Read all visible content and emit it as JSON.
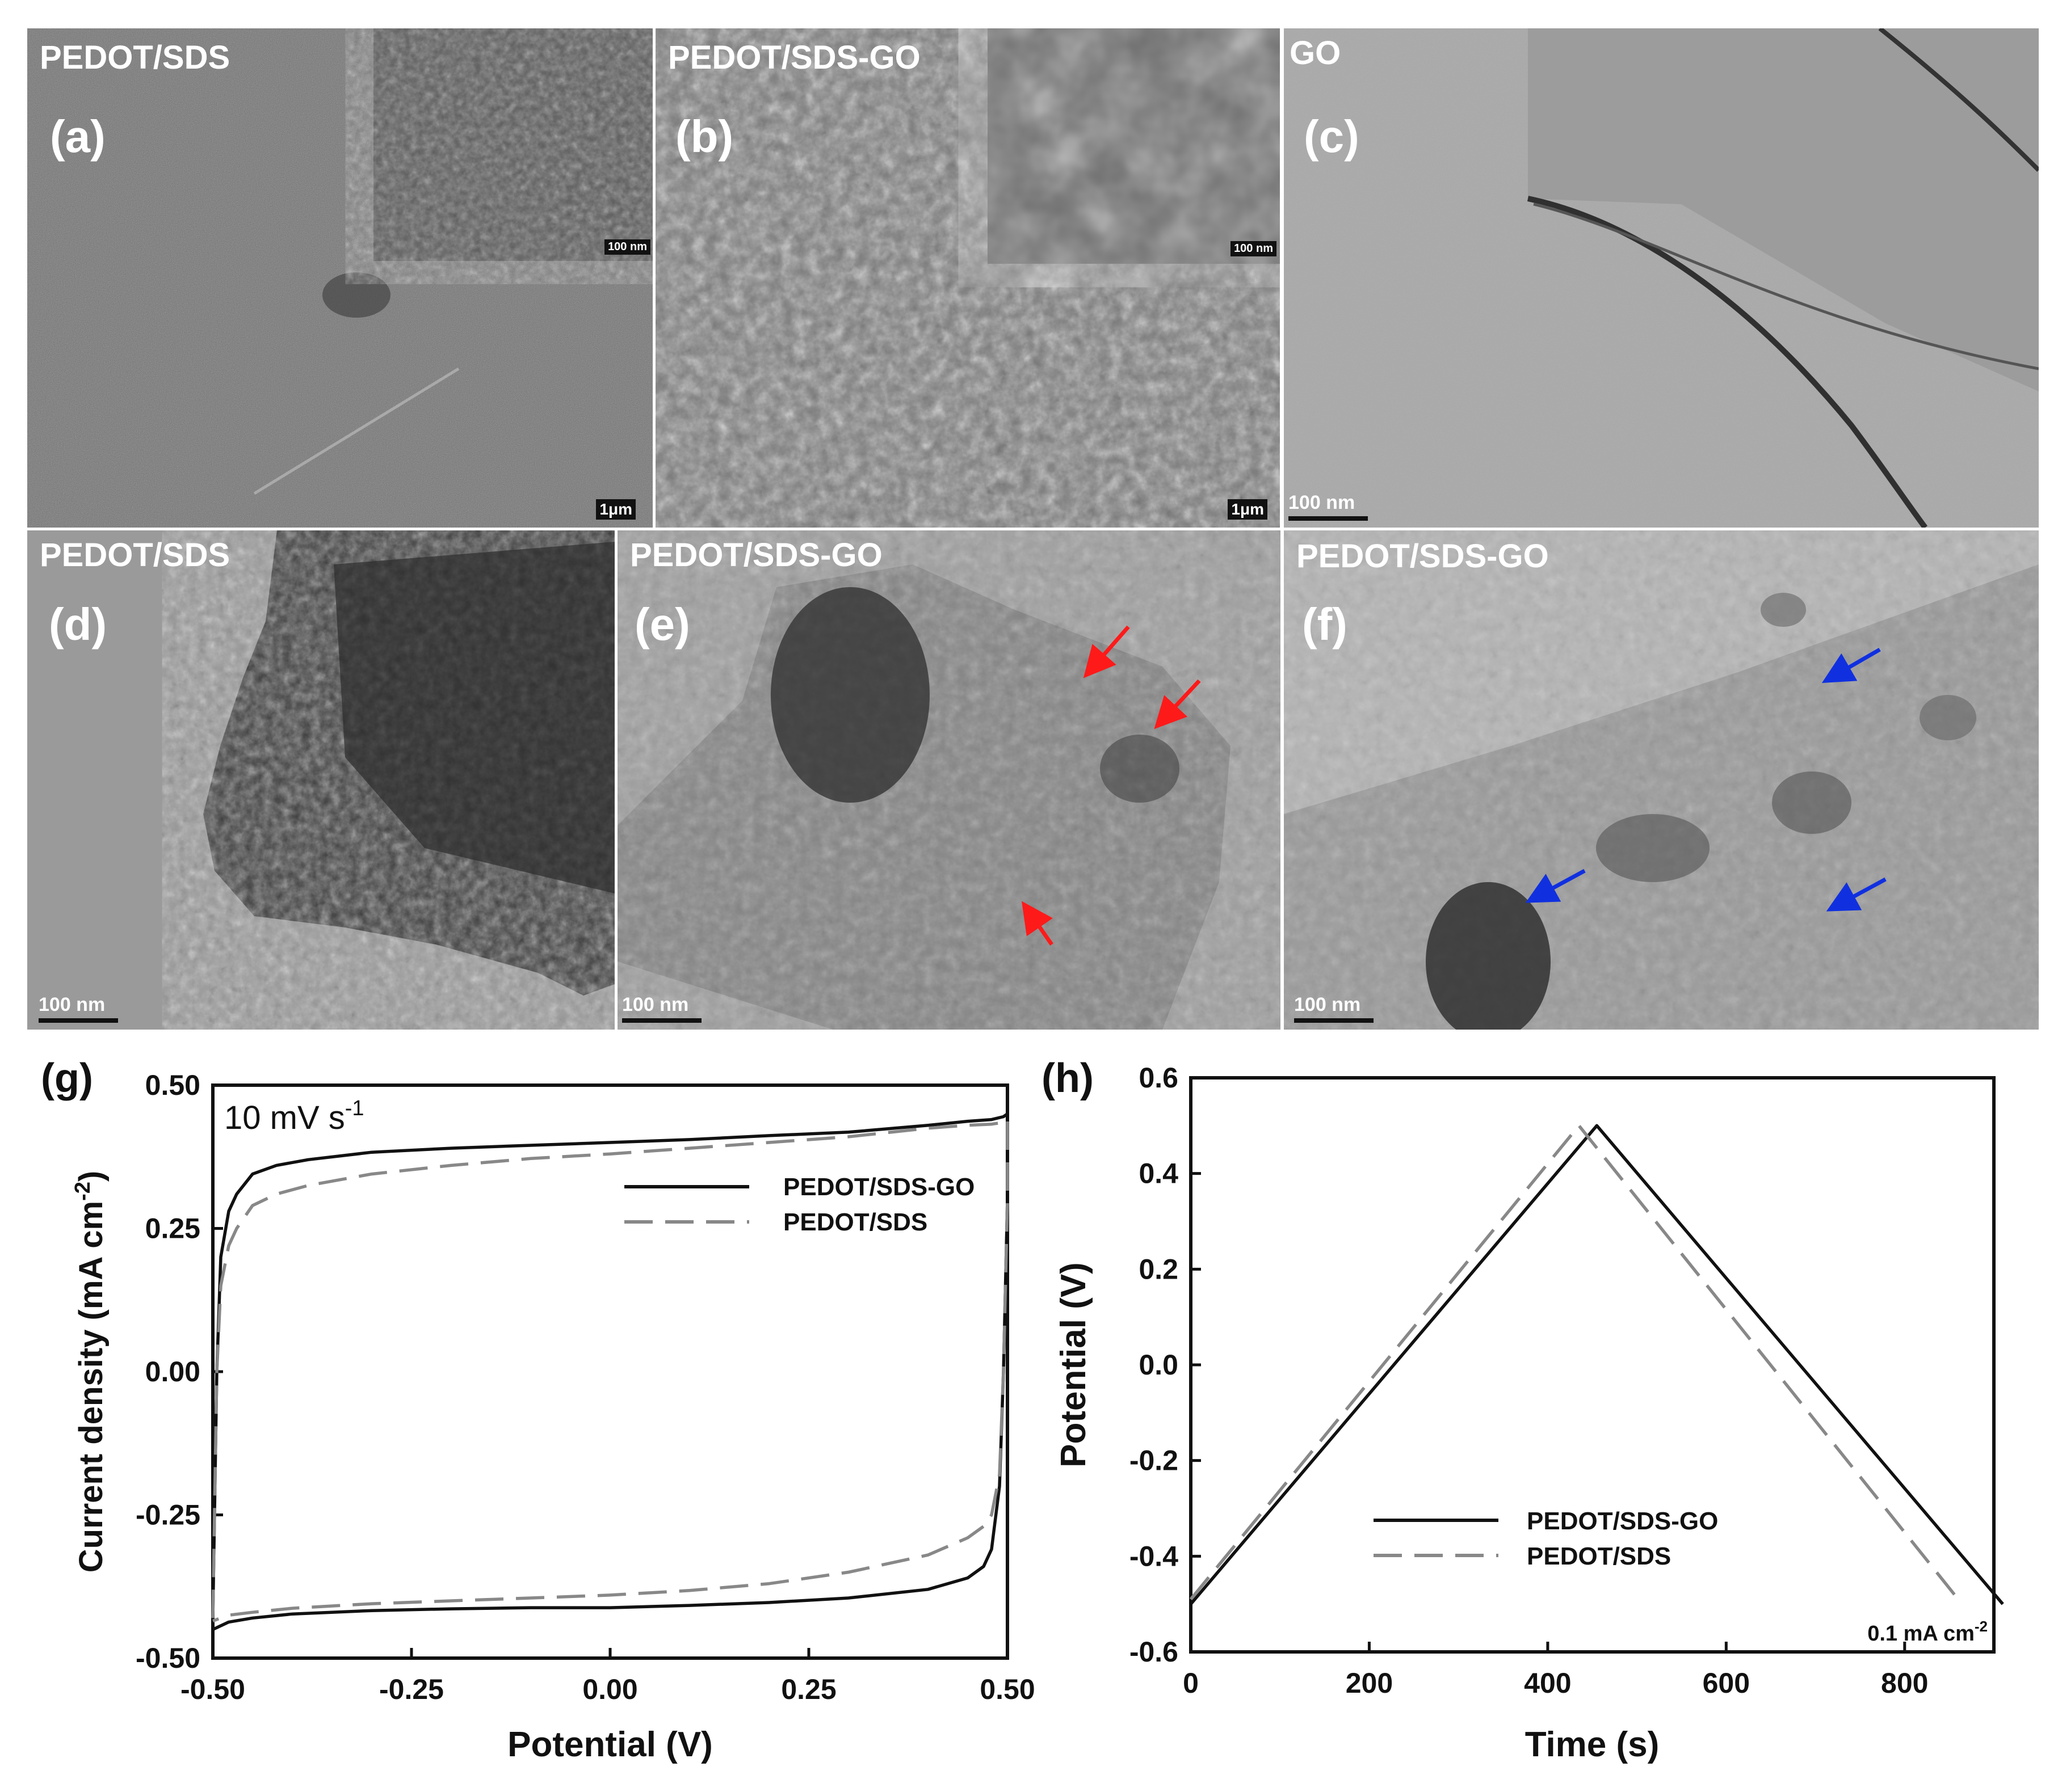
{
  "panels": {
    "a": {
      "title": "PEDOT/SDS",
      "label": "(a)",
      "scale_main": "1μm",
      "scale_inset": "100 nm"
    },
    "b": {
      "title": "PEDOT/SDS-GO",
      "label": "(b)",
      "scale_main": "1μm",
      "scale_inset": "100 nm"
    },
    "c": {
      "title": "GO",
      "label": "(c)",
      "scale": "100 nm"
    },
    "d": {
      "title": "PEDOT/SDS",
      "label": "(d)",
      "scale": "100 nm"
    },
    "e": {
      "title": "PEDOT/SDS-GO",
      "label": "(e)",
      "scale": "100 nm"
    },
    "f": {
      "title": "PEDOT/SDS-GO",
      "label": "(f)",
      "scale": "100 nm"
    }
  },
  "colors": {
    "red_arrow": "#ff1a1a",
    "blue_arrow": "#1030e0",
    "series_solid": "#111111",
    "series_dashed": "#888888"
  },
  "chart_data": [
    {
      "panel_label": "(g)",
      "type": "line",
      "annotation": "10 mV s",
      "annotation_sup": "-1",
      "xlabel": "Potential (V)",
      "ylabel": "Current density (mA cm",
      "ylabel_sup": "-2",
      "ylabel_end": ")",
      "xlim": [
        -0.5,
        0.5
      ],
      "ylim": [
        -0.5,
        0.5
      ],
      "xticks": [
        "-0.50",
        "-0.25",
        "0.00",
        "0.25",
        "0.50"
      ],
      "yticks": [
        "-0.50",
        "-0.25",
        "0.00",
        "0.25",
        "0.50"
      ],
      "legend": "top-right",
      "series": [
        {
          "name": "PEDOT/SDS-GO",
          "style": "solid",
          "x": [
            -0.5,
            -0.495,
            -0.49,
            -0.48,
            -0.47,
            -0.45,
            -0.42,
            -0.38,
            -0.3,
            -0.2,
            -0.1,
            0.0,
            0.1,
            0.2,
            0.3,
            0.4,
            0.45,
            0.48,
            0.495,
            0.5,
            0.5,
            0.495,
            0.49,
            0.48,
            0.47,
            0.45,
            0.4,
            0.3,
            0.2,
            0.1,
            0.0,
            -0.1,
            -0.2,
            -0.3,
            -0.4,
            -0.45,
            -0.48,
            -0.5
          ],
          "y": [
            -0.43,
            0.0,
            0.2,
            0.28,
            0.31,
            0.345,
            0.36,
            0.37,
            0.383,
            0.39,
            0.395,
            0.4,
            0.405,
            0.412,
            0.418,
            0.43,
            0.437,
            0.44,
            0.445,
            0.45,
            0.3,
            0.0,
            -0.2,
            -0.31,
            -0.34,
            -0.36,
            -0.38,
            -0.395,
            -0.403,
            -0.408,
            -0.412,
            -0.412,
            -0.414,
            -0.417,
            -0.423,
            -0.43,
            -0.437,
            -0.45
          ]
        },
        {
          "name": "PEDOT/SDS",
          "style": "dashed",
          "x": [
            -0.5,
            -0.495,
            -0.49,
            -0.48,
            -0.47,
            -0.45,
            -0.42,
            -0.38,
            -0.3,
            -0.2,
            -0.1,
            0.0,
            0.1,
            0.2,
            0.3,
            0.4,
            0.45,
            0.48,
            0.495,
            0.5,
            0.5,
            0.495,
            0.49,
            0.48,
            0.47,
            0.45,
            0.4,
            0.3,
            0.2,
            0.1,
            0.0,
            -0.1,
            -0.2,
            -0.3,
            -0.4,
            -0.45,
            -0.48,
            -0.5
          ],
          "y": [
            -0.43,
            0.0,
            0.15,
            0.22,
            0.25,
            0.29,
            0.31,
            0.325,
            0.345,
            0.36,
            0.372,
            0.38,
            0.39,
            0.4,
            0.41,
            0.425,
            0.43,
            0.432,
            0.435,
            0.44,
            0.3,
            0.0,
            -0.18,
            -0.25,
            -0.27,
            -0.29,
            -0.32,
            -0.35,
            -0.37,
            -0.382,
            -0.39,
            -0.395,
            -0.4,
            -0.405,
            -0.413,
            -0.42,
            -0.425,
            -0.435
          ]
        }
      ]
    },
    {
      "panel_label": "(h)",
      "type": "line",
      "xlabel": "Time (s)",
      "ylabel": "Potential (V)",
      "xlim": [
        0,
        900
      ],
      "ylim": [
        -0.6,
        0.6
      ],
      "xticks": [
        "0",
        "200",
        "400",
        "600",
        "800"
      ],
      "yticks": [
        "-0.6",
        "-0.4",
        "-0.2",
        "0.0",
        "0.2",
        "0.4",
        "0.6"
      ],
      "annotation": "0.1 mA cm",
      "annotation_sup": "-2",
      "legend": "bottom-center",
      "series": [
        {
          "name": "PEDOT/SDS-GO",
          "style": "solid",
          "x": [
            0,
            455,
            910
          ],
          "y": [
            -0.5,
            0.5,
            -0.5
          ]
        },
        {
          "name": "PEDOT/SDS",
          "style": "dashed",
          "x": [
            0,
            435,
            860
          ],
          "y": [
            -0.49,
            0.5,
            -0.49
          ]
        }
      ]
    }
  ]
}
